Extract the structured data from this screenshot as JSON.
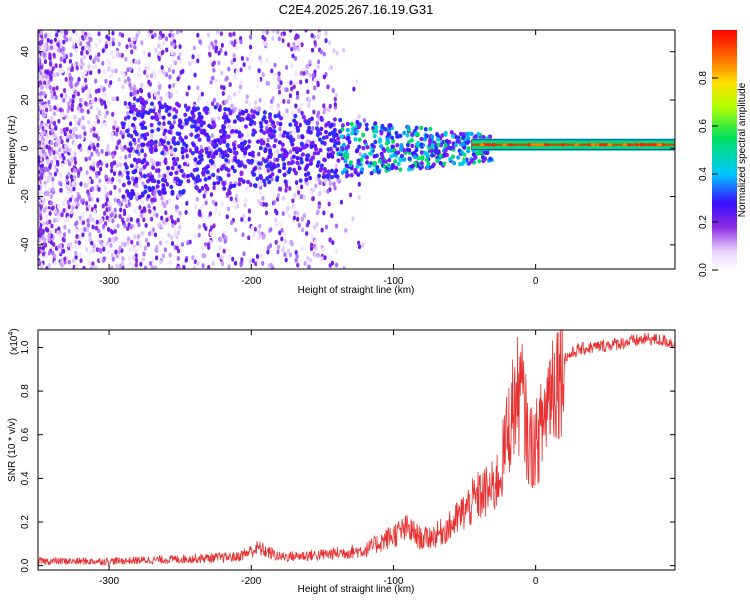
{
  "title": "C2E4.2025.267.16.19.G31",
  "colors": {
    "snr_line": "#e83030",
    "spectrogram_low": "#7a1cff",
    "background": "#ffffff"
  },
  "chart_data": [
    {
      "type": "heatmap",
      "name": "spectrogram",
      "title": "C2E4.2025.267.16.19.G31",
      "xlabel": "Height of straight line (km)",
      "ylabel": "Frequency (Hz)",
      "xlim": [
        -350,
        98
      ],
      "ylim": [
        -50,
        49
      ],
      "x_ticks": [
        -300,
        -200,
        -100,
        0
      ],
      "y_ticks": [
        -40,
        -20,
        0,
        20,
        40
      ],
      "colorbar": {
        "label": "Normalized spectral amplitude",
        "range": [
          0.0,
          1.0
        ],
        "ticks": [
          0.0,
          0.2,
          0.4,
          0.6,
          0.8
        ]
      },
      "features": [
        {
          "x_range": [
            -350,
            -140
          ],
          "description_value": "broadband noise spread across -50..49 Hz, amplitude ~0.05-0.15"
        },
        {
          "x_range": [
            -140,
            -40
          ],
          "freq_spread_hz": [
            -15,
            12
          ],
          "amplitude": 0.3
        },
        {
          "x_range": [
            -40,
            98
          ],
          "freq_center_hz": 1.5,
          "amplitude": 0.9
        }
      ]
    },
    {
      "type": "line",
      "name": "snr",
      "xlabel": "Height of straight line (km)",
      "ylabel": "SNR (10 * v/v)",
      "y_scale_label": "(x10",
      "y_scale_exponent": "4",
      "xlim": [
        -350,
        98
      ],
      "ylim": [
        -0.02,
        1.08
      ],
      "x_ticks": [
        -300,
        -200,
        -100,
        0
      ],
      "y_ticks": [
        0.0,
        0.2,
        0.4,
        0.6,
        0.8,
        1.0
      ],
      "x": [
        -350,
        -300,
        -250,
        -210,
        -195,
        -180,
        -150,
        -120,
        -100,
        -90,
        -80,
        -70,
        -60,
        -50,
        -40,
        -30,
        -25,
        -20,
        -15,
        -10,
        -5,
        0,
        5,
        10,
        15,
        20,
        30,
        40,
        50,
        60,
        70,
        80,
        90,
        98
      ],
      "values": [
        0.02,
        0.02,
        0.03,
        0.04,
        0.08,
        0.04,
        0.05,
        0.07,
        0.14,
        0.17,
        0.12,
        0.14,
        0.18,
        0.25,
        0.32,
        0.35,
        0.42,
        0.6,
        0.75,
        0.8,
        0.55,
        0.55,
        0.65,
        0.82,
        0.88,
        0.95,
        0.99,
        1.0,
        1.01,
        1.02,
        1.03,
        1.04,
        1.03,
        1.02
      ]
    }
  ]
}
